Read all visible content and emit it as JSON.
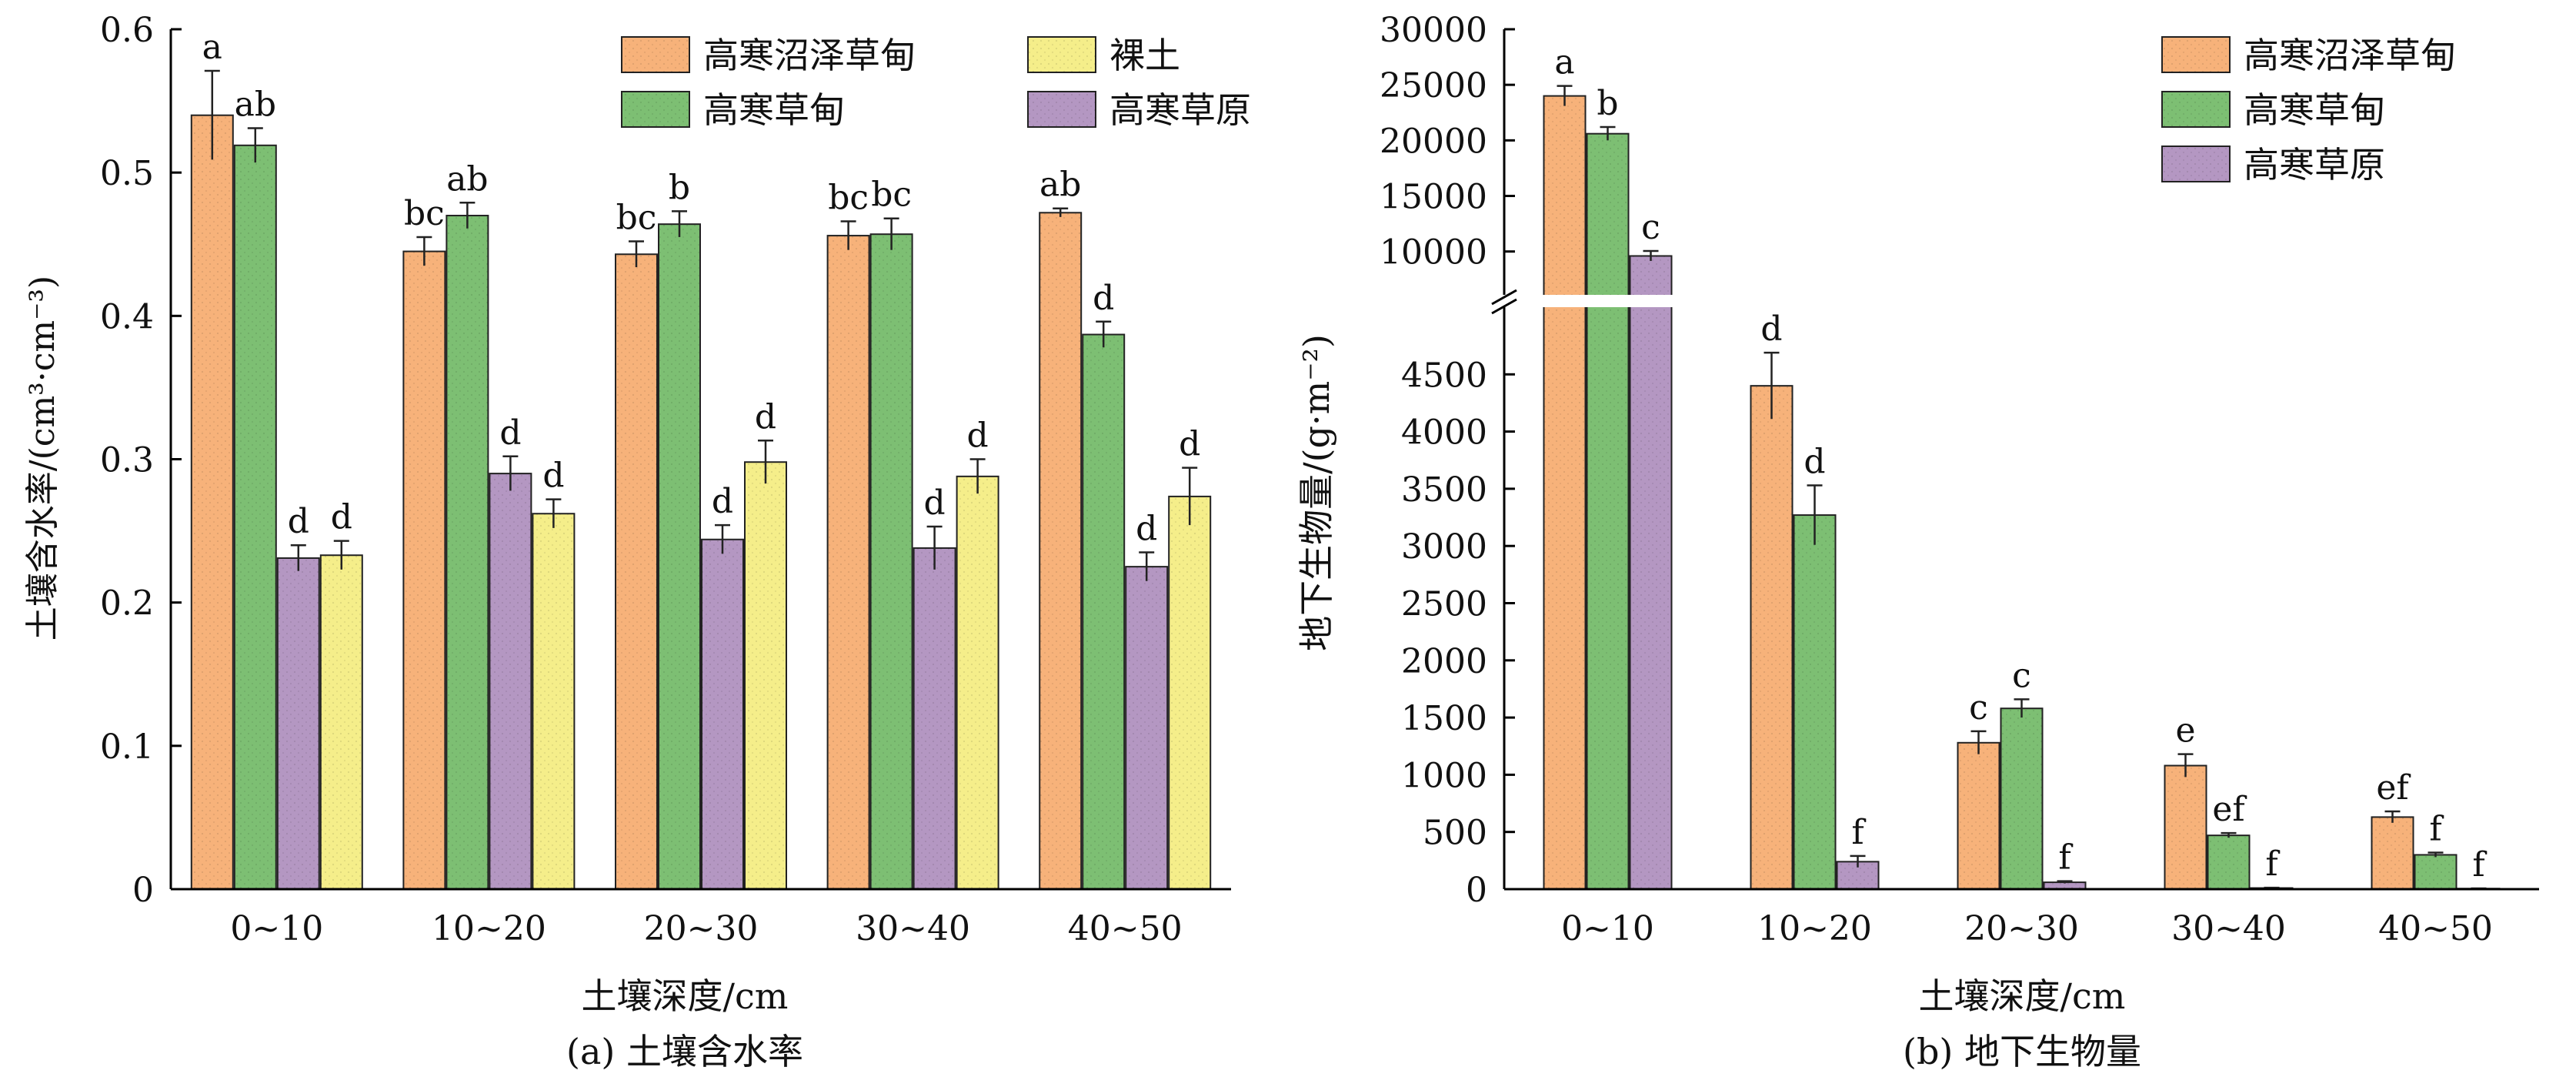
{
  "chart_data": [
    {
      "type": "bar",
      "caption": "(a) 土壤含水率",
      "xlabel": "土壤深度/cm",
      "ylabel": "土壤含水率/(cm³·cm⁻³)",
      "categories": [
        "0~10",
        "10~20",
        "20~30",
        "30~40",
        "40~50"
      ],
      "ylim": [
        0,
        0.6
      ],
      "yticks": [
        "0",
        "0.1",
        "0.2",
        "0.3",
        "0.4",
        "0.5",
        "0.6"
      ],
      "yticks_values": [
        0,
        0.1,
        0.2,
        0.3,
        0.4,
        0.5,
        0.6
      ],
      "legend_position": "top-right",
      "series": [
        {
          "name": "高寒沼泽草甸",
          "color": "#f7b27a",
          "values": [
            0.54,
            0.445,
            0.443,
            0.456,
            0.472
          ],
          "errors": [
            0.031,
            0.01,
            0.009,
            0.01,
            0.003
          ],
          "letters": [
            "a",
            "bc",
            "bc",
            "bc",
            "ab"
          ]
        },
        {
          "name": "高寒草甸",
          "color": "#7dbf73",
          "values": [
            0.519,
            0.47,
            0.464,
            0.457,
            0.387
          ],
          "errors": [
            0.012,
            0.009,
            0.009,
            0.011,
            0.009
          ],
          "letters": [
            "ab",
            "ab",
            "b",
            "bc",
            "d"
          ]
        },
        {
          "name": "高寒草原",
          "color": "#b497c2",
          "values": [
            0.231,
            0.29,
            0.244,
            0.238,
            0.225
          ],
          "errors": [
            0.009,
            0.012,
            0.01,
            0.015,
            0.01
          ],
          "letters": [
            "d",
            "d",
            "d",
            "d",
            "d"
          ]
        },
        {
          "name": "裸土",
          "color": "#f5ee8a",
          "values": [
            0.233,
            0.262,
            0.298,
            0.288,
            0.274
          ],
          "errors": [
            0.01,
            0.01,
            0.015,
            0.012,
            0.02
          ],
          "letters": [
            "d",
            "d",
            "d",
            "d",
            "d"
          ]
        }
      ],
      "legend_order": [
        "高寒沼泽草甸",
        "裸土",
        "高寒草甸",
        "高寒草原"
      ]
    },
    {
      "type": "bar",
      "caption": "(b) 地下生物量",
      "xlabel": "土壤深度/cm",
      "ylabel": "地下生物量/(g·m⁻²)",
      "categories": [
        "0~10",
        "10~20",
        "20~30",
        "30~40",
        "40~50"
      ],
      "axis_break": true,
      "ylim_lower": [
        0,
        5000
      ],
      "ylim_upper": [
        7000,
        30000
      ],
      "yticks_lower": [
        "0",
        "500",
        "1000",
        "1500",
        "2000",
        "2500",
        "3000",
        "3500",
        "4000",
        "4500"
      ],
      "yticks_lower_values": [
        0,
        500,
        1000,
        1500,
        2000,
        2500,
        3000,
        3500,
        4000,
        4500
      ],
      "yticks_upper": [
        "10000",
        "15000",
        "20000",
        "25000",
        "30000"
      ],
      "yticks_upper_values": [
        10000,
        15000,
        20000,
        25000,
        30000
      ],
      "legend_position": "top-right",
      "series": [
        {
          "name": "高寒沼泽草甸",
          "color": "#f7b27a",
          "values": [
            24000,
            4400,
            1280,
            1080,
            630
          ],
          "errors": [
            900,
            290,
            100,
            100,
            50
          ],
          "letters": [
            "a",
            "d",
            "c",
            "e",
            "ef"
          ]
        },
        {
          "name": "高寒草甸",
          "color": "#7dbf73",
          "values": [
            20600,
            3270,
            1580,
            470,
            300
          ],
          "errors": [
            600,
            260,
            80,
            20,
            20
          ],
          "letters": [
            "b",
            "d",
            "c",
            "ef",
            "f"
          ]
        },
        {
          "name": "高寒草原",
          "color": "#b497c2",
          "values": [
            9600,
            240,
            60,
            10,
            5
          ],
          "errors": [
            450,
            50,
            10,
            3,
            2
          ],
          "letters": [
            "c",
            "f",
            "f",
            "f",
            "f"
          ]
        }
      ],
      "legend_order": [
        "高寒沼泽草甸",
        "高寒草甸",
        "高寒草原"
      ]
    }
  ]
}
